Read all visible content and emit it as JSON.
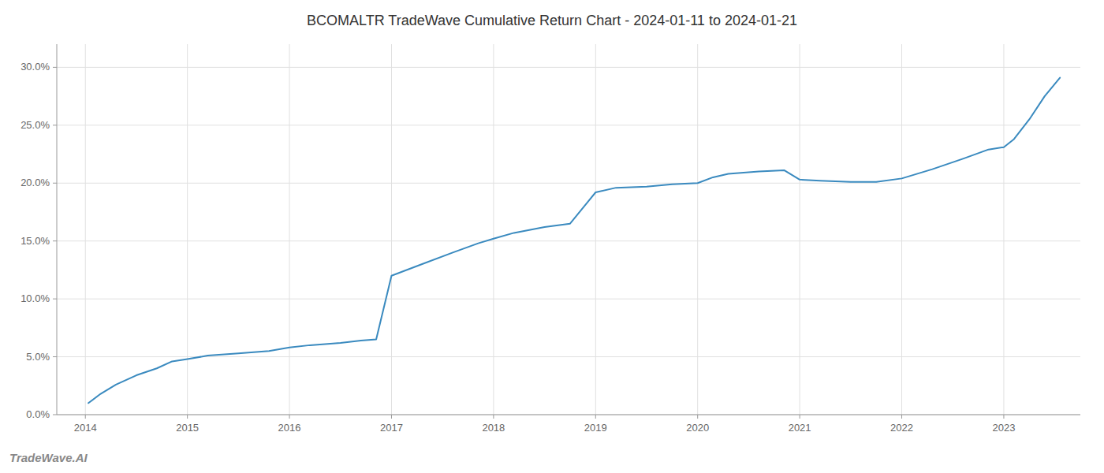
{
  "chart_data": {
    "type": "line",
    "title": "BCOMALTR TradeWave Cumulative Return Chart - 2024-01-11 to 2024-01-21",
    "annotations": [
      "TradeWave.AI"
    ],
    "color": "#3a8abf",
    "grid": true,
    "x": [
      2014.03,
      2014.15,
      2014.3,
      2014.5,
      2014.7,
      2014.85,
      2015.0,
      2015.2,
      2015.5,
      2015.8,
      2016.0,
      2016.2,
      2016.5,
      2016.7,
      2016.85,
      2017.0,
      2017.3,
      2017.6,
      2017.85,
      2018.0,
      2018.2,
      2018.5,
      2018.75,
      2019.0,
      2019.2,
      2019.5,
      2019.75,
      2020.0,
      2020.15,
      2020.3,
      2020.6,
      2020.85,
      2021.0,
      2021.2,
      2021.5,
      2021.75,
      2022.0,
      2022.3,
      2022.6,
      2022.85,
      2023.0,
      2023.1,
      2023.25,
      2023.4,
      2023.55
    ],
    "values": [
      0.01,
      0.018,
      0.026,
      0.034,
      0.04,
      0.046,
      0.048,
      0.051,
      0.053,
      0.055,
      0.058,
      0.06,
      0.062,
      0.064,
      0.065,
      0.12,
      0.13,
      0.14,
      0.148,
      0.152,
      0.157,
      0.162,
      0.165,
      0.192,
      0.196,
      0.197,
      0.199,
      0.2,
      0.205,
      0.208,
      0.21,
      0.211,
      0.203,
      0.202,
      0.201,
      0.201,
      0.204,
      0.212,
      0.221,
      0.229,
      0.231,
      0.238,
      0.255,
      0.275,
      0.291
    ],
    "xlim": [
      2013.72,
      2023.75
    ],
    "xticks": [
      2014,
      2015,
      2016,
      2017,
      2018,
      2019,
      2020,
      2021,
      2022,
      2023
    ],
    "ylim": [
      0.0,
      0.32
    ],
    "yticks": [
      {
        "value": 0.0,
        "label": "0.0%"
      },
      {
        "value": 0.05,
        "label": "5.0%"
      },
      {
        "value": 0.1,
        "label": "10.0%"
      },
      {
        "value": 0.15,
        "label": "15.0%"
      },
      {
        "value": 0.2,
        "label": "20.0%"
      },
      {
        "value": 0.25,
        "label": "25.0%"
      },
      {
        "value": 0.3,
        "label": "30.0%"
      }
    ]
  }
}
